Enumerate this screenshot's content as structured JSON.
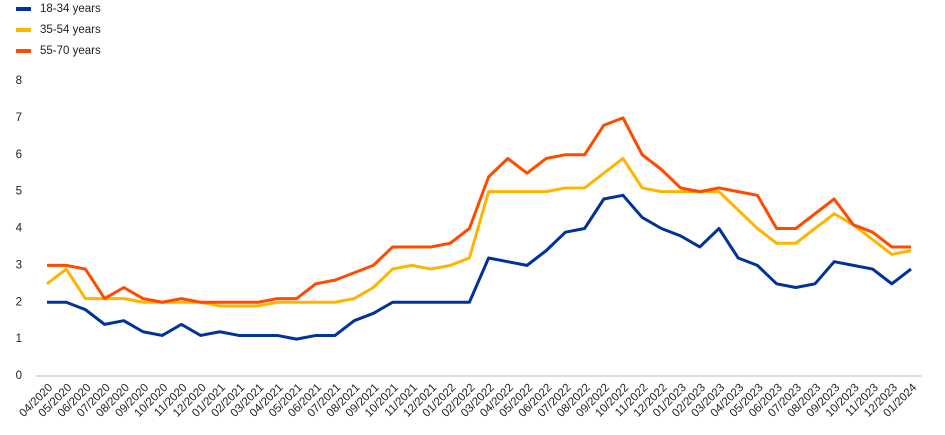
{
  "chart_data": {
    "type": "line",
    "categories": [
      "04/2020",
      "05/2020",
      "06/2020",
      "07/2020",
      "08/2020",
      "09/2020",
      "10/2020",
      "11/2020",
      "12/2020",
      "01/2021",
      "02/2021",
      "03/2021",
      "04/2021",
      "05/2021",
      "06/2021",
      "07/2021",
      "08/2021",
      "09/2021",
      "10/2021",
      "11/2021",
      "12/2021",
      "01/2022",
      "02/2022",
      "03/2022",
      "04/2022",
      "05/2022",
      "06/2022",
      "07/2022",
      "08/2022",
      "09/2022",
      "10/2022",
      "11/2022",
      "12/2022",
      "01/2023",
      "02/2023",
      "03/2023",
      "04/2023",
      "05/2023",
      "06/2023",
      "07/2023",
      "08/2023",
      "09/2023",
      "10/2023",
      "11/2023",
      "12/2023",
      "01/2024"
    ],
    "series": [
      {
        "name": "18-34 years",
        "color": "#003299",
        "values": [
          2.0,
          2.0,
          1.8,
          1.4,
          1.5,
          1.2,
          1.1,
          1.4,
          1.1,
          1.2,
          1.1,
          1.1,
          1.1,
          1.0,
          1.1,
          1.1,
          1.5,
          1.7,
          2.0,
          2.0,
          2.0,
          2.0,
          2.0,
          3.2,
          3.1,
          3.0,
          3.4,
          3.9,
          4.0,
          4.8,
          4.9,
          4.3,
          4.0,
          3.8,
          3.5,
          4.0,
          3.2,
          3.0,
          2.5,
          2.4,
          2.5,
          3.1,
          3.0,
          2.9,
          2.5,
          2.9
        ]
      },
      {
        "name": "35-54 years",
        "color": "#ffb400",
        "values": [
          2.5,
          2.9,
          2.1,
          2.1,
          2.1,
          2.0,
          2.0,
          2.0,
          2.0,
          1.9,
          1.9,
          1.9,
          2.0,
          2.0,
          2.0,
          2.0,
          2.1,
          2.4,
          2.9,
          3.0,
          2.9,
          3.0,
          3.2,
          5.0,
          5.0,
          5.0,
          5.0,
          5.1,
          5.1,
          5.5,
          5.9,
          5.1,
          5.0,
          5.0,
          5.0,
          5.0,
          4.5,
          4.0,
          3.6,
          3.6,
          4.0,
          4.4,
          4.1,
          3.7,
          3.3,
          3.4
        ]
      },
      {
        "name": "55-70 years",
        "color": "#ff4b00",
        "values": [
          3.0,
          3.0,
          2.9,
          2.1,
          2.4,
          2.1,
          2.0,
          2.1,
          2.0,
          2.0,
          2.0,
          2.0,
          2.1,
          2.1,
          2.5,
          2.6,
          2.8,
          3.0,
          3.5,
          3.5,
          3.5,
          3.6,
          4.0,
          5.4,
          5.9,
          5.5,
          5.9,
          6.0,
          6.0,
          6.8,
          7.0,
          6.0,
          5.6,
          5.1,
          5.0,
          5.1,
          5.0,
          4.9,
          4.0,
          4.0,
          4.4,
          4.8,
          4.1,
          3.9,
          3.5,
          3.5
        ]
      }
    ],
    "ylim": [
      0,
      8
    ],
    "yticks": [
      0,
      1,
      2,
      3,
      4,
      5,
      6,
      7,
      8
    ],
    "grid": false,
    "legend": "top-left"
  }
}
